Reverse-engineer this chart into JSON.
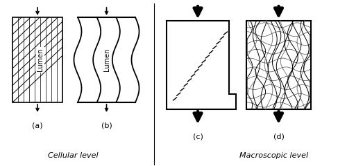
{
  "bg_color": "#ffffff",
  "label_a": "(a)",
  "label_b": "(b)",
  "label_c": "(c)",
  "label_d": "(d)",
  "cellular_level": "Cellular level",
  "macroscopic_level": "Macroscopic level",
  "lumen_text": "Lumen"
}
